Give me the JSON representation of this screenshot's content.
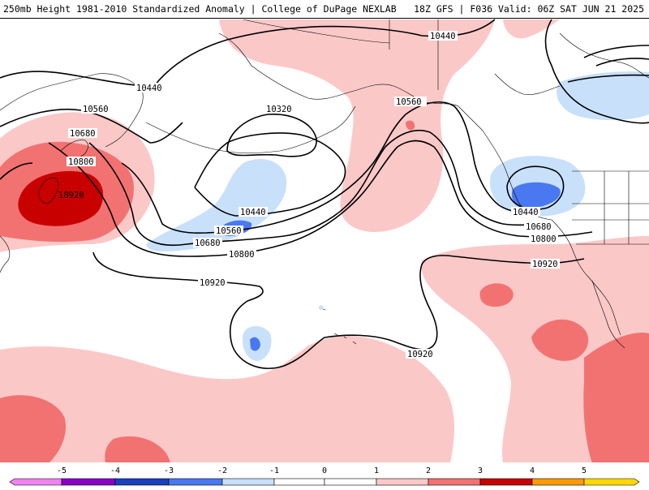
{
  "header": {
    "left_title": "250mb Height 1981-2010 Standardized Anomaly | College of DuPage NEXLAB",
    "right_title": "18Z GFS | F036 Valid: 06Z SAT JUN 21 2025"
  },
  "colors": {
    "m5": "#ee82ee",
    "m4": "#8a00c8",
    "m3": "#1a3fbf",
    "m2": "#4a78f0",
    "m1": "#c8e0fa",
    "zero": "#ffffff",
    "p1": "#fbc8c8",
    "p2": "#f27272",
    "p3": "#c80000",
    "p4": "#ff9a00",
    "p5": "#ffd800",
    "coast": "#000000",
    "contour": "#000000"
  },
  "contour_labels": {
    "c1": "10440",
    "c2": "10560",
    "c3": "10680",
    "c4": "10800",
    "c5": "10920",
    "c6": "10320",
    "c7": "10440",
    "c8": "10560",
    "c9": "10680",
    "c10": "10800",
    "c11": "10920",
    "c12": "10440",
    "c13": "10560",
    "c14": "10440",
    "c15": "10680",
    "c16": "10800",
    "c17": "10920",
    "c18": "10920"
  },
  "colorbar": {
    "ticks": [
      "-5",
      "-4",
      "-3",
      "-2",
      "-1",
      "0",
      "1",
      "2",
      "3",
      "4",
      "5"
    ]
  }
}
